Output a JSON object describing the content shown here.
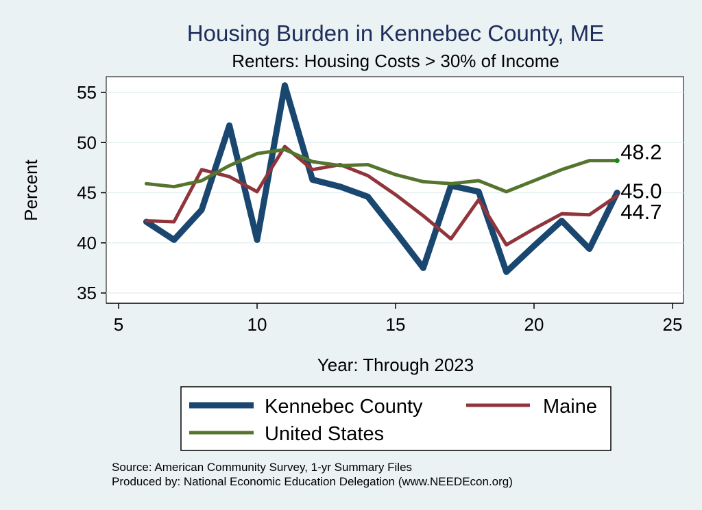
{
  "chart_data": {
    "type": "line",
    "title": "Housing Burden in Kennebec County, ME",
    "subtitle": "Renters: Housing Costs > 30% of Income",
    "xlabel": "Year: Through 2023",
    "ylabel": "Percent",
    "xlim": [
      5,
      25
    ],
    "ylim": [
      34,
      57
    ],
    "xticks": [
      5,
      10,
      15,
      20,
      25
    ],
    "yticks": [
      35,
      40,
      45,
      50,
      55
    ],
    "grid": true,
    "legend_position": "bottom",
    "x": [
      6,
      7,
      8,
      9,
      10,
      11,
      12,
      13,
      14,
      15,
      16,
      17,
      18,
      19,
      20,
      21,
      22,
      23
    ],
    "series": [
      {
        "name": "Kennebec County",
        "color": "#1a476f",
        "values": [
          42.1,
          40.3,
          43.3,
          51.7,
          40.3,
          55.7,
          46.3,
          45.6,
          44.6,
          41.1,
          37.5,
          45.7,
          45.1,
          37.1,
          39.7,
          42.2,
          39.4,
          45.0
        ],
        "end_label": "45.0"
      },
      {
        "name": "Maine",
        "color": "#90353b",
        "values": [
          42.2,
          42.1,
          47.3,
          46.6,
          45.1,
          49.6,
          47.3,
          47.8,
          46.7,
          44.8,
          42.7,
          40.4,
          44.3,
          39.8,
          41.4,
          42.9,
          42.8,
          44.7
        ],
        "end_label": "44.7"
      },
      {
        "name": "United States",
        "color": "#55752f",
        "values": [
          45.9,
          45.6,
          46.2,
          47.7,
          48.9,
          49.3,
          48.1,
          47.7,
          47.8,
          46.8,
          46.1,
          45.9,
          46.2,
          45.1,
          46.2,
          47.3,
          48.2,
          48.2
        ],
        "end_label": "48.2"
      }
    ]
  },
  "footer": {
    "source": "Source: American Community Survey, 1-yr Summary Files",
    "produced_by": "Produced by: National Economic Education Delegation (www.NEEDEcon.org)"
  }
}
